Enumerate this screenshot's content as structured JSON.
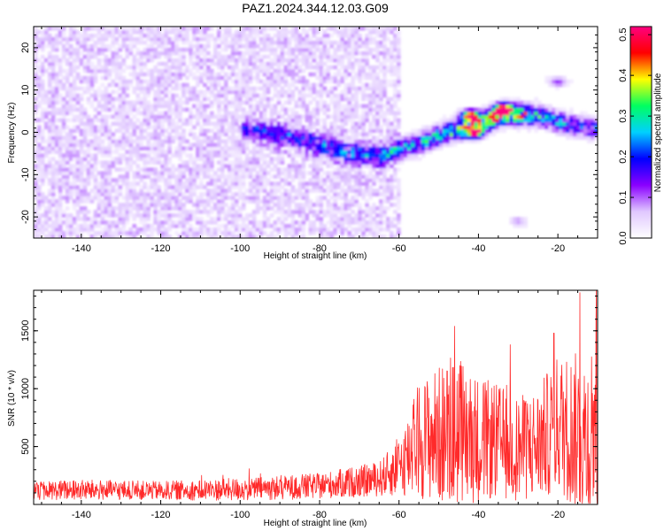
{
  "title": "PAZ1.2024.344.12.03.G09",
  "chart_data": [
    {
      "type": "heatmap",
      "xlabel": "Height of straight line (km)",
      "ylabel": "Frequency (Hz)",
      "xlim": [
        -152,
        -10
      ],
      "ylim": [
        -25,
        25
      ],
      "x_ticks": [
        -140,
        -120,
        -100,
        -80,
        -60,
        -40,
        -20
      ],
      "x_tick_labels": [
        "-140",
        "-120",
        "-100",
        "-80",
        "-60",
        "-40",
        "-20"
      ],
      "y_ticks": [
        -20,
        -10,
        0,
        10,
        20
      ],
      "y_tick_labels": [
        "-20",
        "-10",
        "0",
        "10",
        "20"
      ],
      "colorbar": {
        "label": "Normalized spectral amplitude",
        "range": [
          0.0,
          0.52
        ],
        "ticks": [
          0.0,
          0.1,
          0.2,
          0.3,
          0.4,
          0.5
        ],
        "tick_labels": [
          "0.0",
          "0.1",
          "0.2",
          "0.3",
          "0.4",
          "0.5"
        ],
        "colormap": [
          "#ffffff",
          "#e0c8ff",
          "#8a00ff",
          "#0000ff",
          "#00d0ff",
          "#00ff60",
          "#ffff00",
          "#ff0000",
          "#ff0080"
        ]
      },
      "noise_region": {
        "x_range": [
          -152,
          -60
        ],
        "y_range": [
          -25,
          25
        ],
        "level": 0.05
      },
      "ridge": {
        "x": [
          -96,
          -85,
          -75,
          -65,
          -55,
          -48,
          -40,
          -33,
          -25,
          -18,
          -12
        ],
        "y": [
          0.5,
          -1.5,
          -4.5,
          -5.5,
          -2.5,
          0,
          2.0,
          4.5,
          4.0,
          2.0,
          1.0
        ],
        "amplitude": [
          0.15,
          0.18,
          0.2,
          0.22,
          0.28,
          0.32,
          0.45,
          0.5,
          0.3,
          0.25,
          0.2
        ]
      },
      "hotspots": [
        {
          "x": -42,
          "y": 4,
          "value": 0.48
        },
        {
          "x": -34,
          "y": 5.5,
          "value": 0.5
        },
        {
          "x": -41,
          "y": 0,
          "value": 0.42
        },
        {
          "x": -20,
          "y": 12,
          "value": 0.12
        },
        {
          "x": -30,
          "y": -21,
          "value": 0.08
        }
      ],
      "grid": false
    },
    {
      "type": "line",
      "xlabel": "Height of straight line (km)",
      "ylabel": "SNR (10 * v/v)",
      "xlim": [
        -152,
        -10
      ],
      "ylim": [
        0,
        1850
      ],
      "x_ticks": [
        -140,
        -120,
        -100,
        -80,
        -60,
        -40,
        -20
      ],
      "x_tick_labels": [
        "-140",
        "-120",
        "-100",
        "-80",
        "-60",
        "-40",
        "-20"
      ],
      "y_ticks": [
        500,
        1000,
        1500
      ],
      "y_tick_labels": [
        "500",
        "1000",
        "1500"
      ],
      "color": "#ff2a2a",
      "envelope": {
        "x": [
          -152,
          -140,
          -120,
          -100,
          -80,
          -65,
          -60,
          -55,
          -50,
          -45,
          -40,
          -35,
          -30,
          -25,
          -20,
          -15,
          -12,
          -10
        ],
        "mean": [
          120,
          125,
          120,
          130,
          160,
          220,
          320,
          560,
          600,
          640,
          560,
          540,
          480,
          520,
          700,
          620,
          560,
          900
        ],
        "spread": [
          80,
          90,
          80,
          100,
          110,
          150,
          250,
          500,
          600,
          650,
          550,
          500,
          450,
          500,
          600,
          700,
          800,
          900
        ]
      },
      "peaks": [
        {
          "x": -46,
          "y": 1540
        },
        {
          "x": -14.5,
          "y": 1830
        },
        {
          "x": -10.3,
          "y": 1850
        },
        {
          "x": -21,
          "y": 1480
        },
        {
          "x": -32,
          "y": 1380
        }
      ],
      "grid": false
    }
  ]
}
